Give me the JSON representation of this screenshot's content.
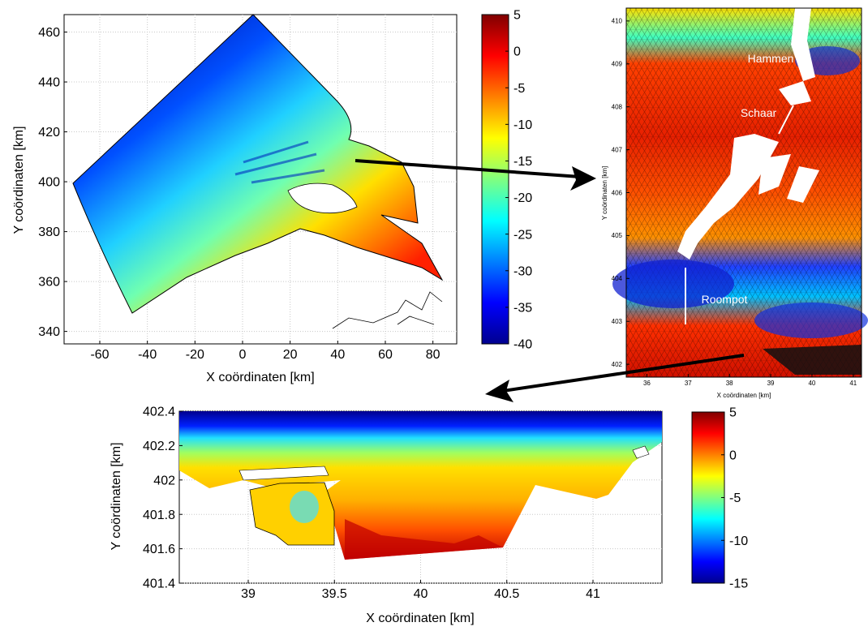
{
  "chart_data": [
    {
      "type": "heatmap",
      "xlabel": "X coördinaten [km]",
      "ylabel": "Y coördinaten [km]",
      "xlim": [
        -75,
        90
      ],
      "ylim": [
        335,
        467
      ],
      "xticks": [
        "-60",
        "-40",
        "-20",
        "0",
        "20",
        "40",
        "60",
        "80"
      ],
      "xtick_values": [
        -60,
        -40,
        -20,
        0,
        20,
        40,
        60,
        80
      ],
      "yticks": [
        "340",
        "360",
        "380",
        "400",
        "420",
        "440",
        "460"
      ],
      "ytick_values": [
        340,
        360,
        380,
        400,
        420,
        440,
        460
      ],
      "grid": true,
      "colorbar": {
        "min": -40,
        "max": 5,
        "ticks": [
          "5",
          "0",
          "-5",
          "-10",
          "-15",
          "-20",
          "-25",
          "-30",
          "-35",
          "-40"
        ],
        "tick_values": [
          5,
          0,
          -5,
          -10,
          -15,
          -20,
          -25,
          -30,
          -35,
          -40
        ],
        "colormap": "jet"
      }
    },
    {
      "type": "heatmap",
      "xlabel": "X coördinaten [km]",
      "ylabel": "Y coördinaten [km]",
      "xlim": [
        35.5,
        41.2
      ],
      "ylim": [
        401.7,
        410.3
      ],
      "xticks": [
        "36",
        "37",
        "38",
        "39",
        "40",
        "41"
      ],
      "xtick_values": [
        36,
        37,
        38,
        39,
        40,
        41
      ],
      "yticks": [
        "402",
        "403",
        "404",
        "405",
        "406",
        "407",
        "408",
        "409",
        "410"
      ],
      "ytick_values": [
        402,
        403,
        404,
        405,
        406,
        407,
        408,
        409,
        410
      ],
      "annotations": [
        {
          "text": "Hammen",
          "x": 39.4,
          "y": 409.1
        },
        {
          "text": "Schaar",
          "x": 38.9,
          "y": 407.8
        },
        {
          "text": "Roompot",
          "x": 38.7,
          "y": 403.4
        }
      ]
    },
    {
      "type": "heatmap",
      "xlabel": "X coördinaten [km]",
      "ylabel": "Y coördinaten [km]",
      "xlim": [
        38.6,
        41.4
      ],
      "ylim": [
        401.4,
        402.4
      ],
      "xticks": [
        "39",
        "39.5",
        "40",
        "40.5",
        "41"
      ],
      "xtick_values": [
        39,
        39.5,
        40,
        40.5,
        41
      ],
      "yticks": [
        "402.4",
        "402.2",
        "402",
        "401.8",
        "401.6",
        "401.4"
      ],
      "ytick_values": [
        402.4,
        402.2,
        402,
        401.8,
        401.6,
        401.4
      ],
      "grid": true,
      "colorbar": {
        "min": -15,
        "max": 5,
        "ticks": [
          "5",
          "0",
          "-5",
          "-10",
          "-15"
        ],
        "tick_values": [
          5,
          0,
          -5,
          -10,
          -15
        ],
        "colormap": "jet"
      }
    }
  ],
  "colors": {
    "jet": [
      "#00008f",
      "#0000ff",
      "#0080ff",
      "#00ffff",
      "#80ff80",
      "#ffff00",
      "#ff8000",
      "#ff0000",
      "#800000"
    ],
    "arrow": "#000000"
  }
}
